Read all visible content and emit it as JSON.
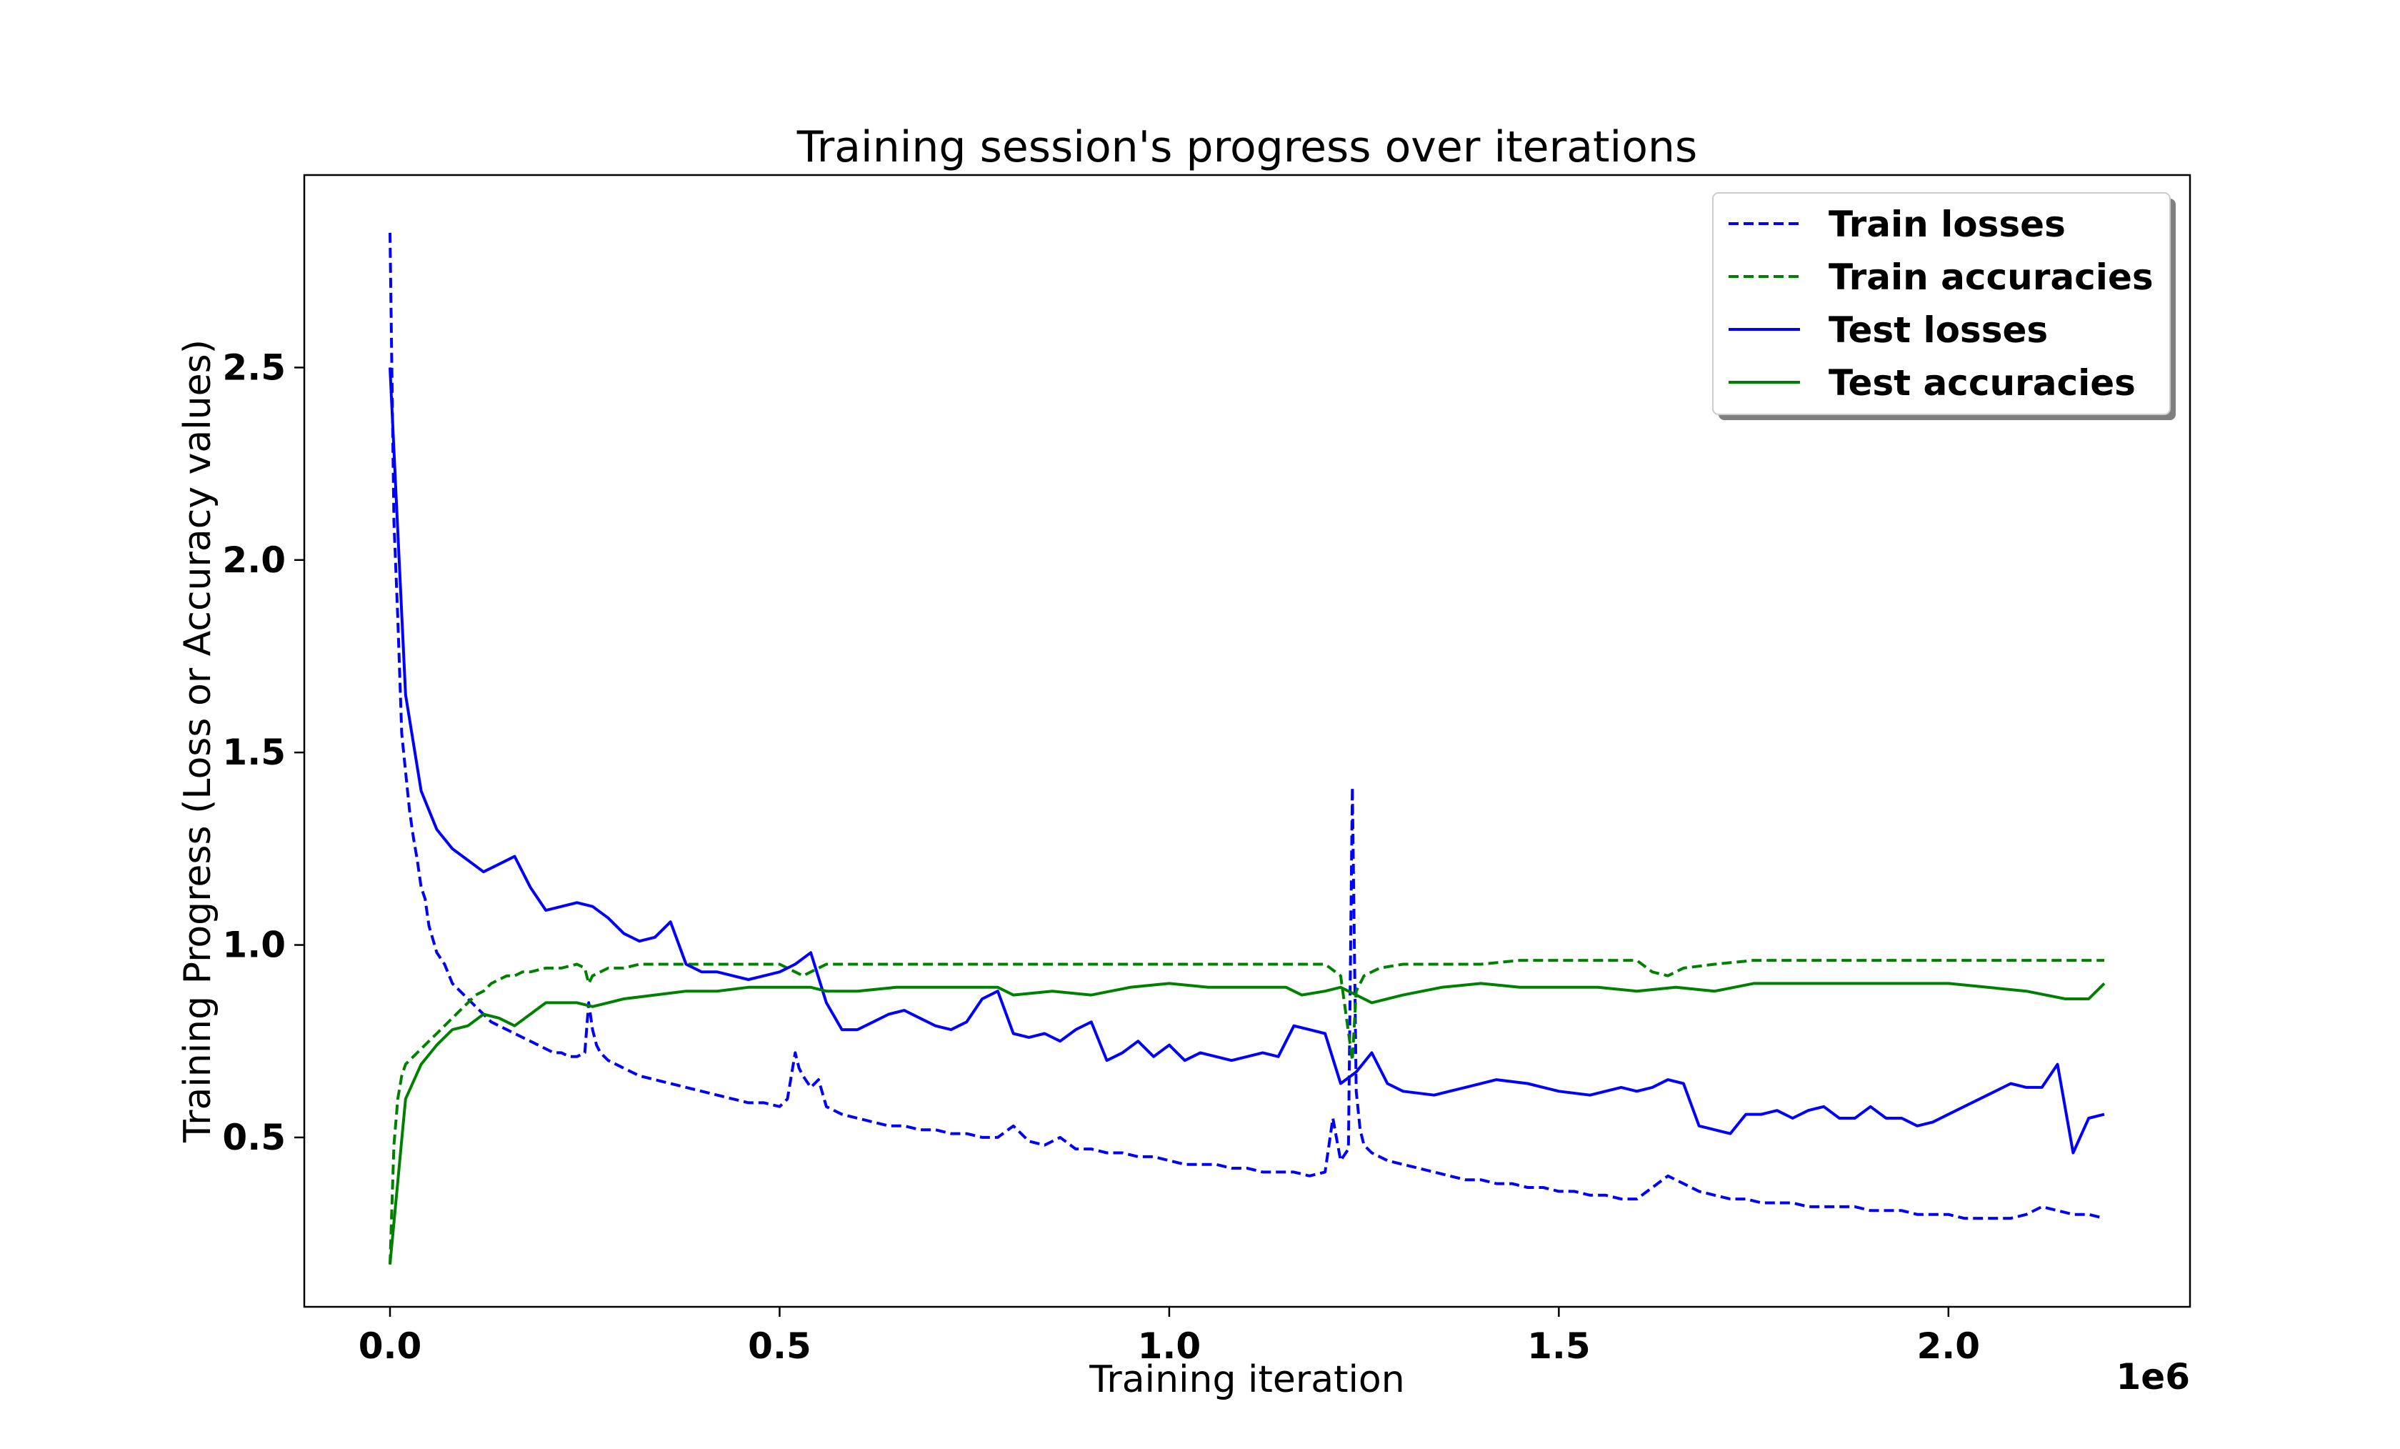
{
  "chart_data": {
    "type": "line",
    "title": "Training session's progress over iterations",
    "xlabel": "Training iteration",
    "ylabel": "Training Progress (Loss or Accuracy values)",
    "x_offset_label": "1e6",
    "x_scale": 1000000,
    "xlim": [
      -110000,
      2310000
    ],
    "ylim": [
      0.06,
      3.0
    ],
    "x_ticks": [
      0,
      500000,
      1000000,
      1500000,
      2000000
    ],
    "x_tick_labels": [
      "0.0",
      "0.5",
      "1.0",
      "1.5",
      "2.0"
    ],
    "y_ticks": [
      0.5,
      1.0,
      1.5,
      2.0,
      2.5
    ],
    "y_tick_labels": [
      "0.5",
      "1.0",
      "1.5",
      "2.0",
      "2.5"
    ],
    "grid": false,
    "legend_position": "top-right",
    "colors": {
      "blue": "#0000ff",
      "green": "#008000"
    },
    "series": [
      {
        "name": "Train losses",
        "color": "#0000ff",
        "style": "dashed",
        "x": [
          0,
          5000,
          10000,
          15000,
          20000,
          25000,
          30000,
          35000,
          40000,
          45000,
          50000,
          60000,
          70000,
          80000,
          90000,
          100000,
          110000,
          120000,
          130000,
          140000,
          150000,
          160000,
          170000,
          180000,
          190000,
          200000,
          210000,
          220000,
          230000,
          240000,
          250000,
          255000,
          260000,
          265000,
          270000,
          280000,
          290000,
          300000,
          320000,
          340000,
          360000,
          380000,
          400000,
          420000,
          440000,
          460000,
          480000,
          500000,
          510000,
          520000,
          525000,
          530000,
          540000,
          550000,
          560000,
          580000,
          600000,
          620000,
          640000,
          660000,
          680000,
          700000,
          720000,
          740000,
          760000,
          780000,
          800000,
          820000,
          840000,
          860000,
          880000,
          900000,
          920000,
          940000,
          960000,
          980000,
          1000000,
          1020000,
          1040000,
          1060000,
          1080000,
          1100000,
          1120000,
          1140000,
          1160000,
          1180000,
          1200000,
          1210000,
          1220000,
          1230000,
          1235000,
          1240000,
          1245000,
          1250000,
          1260000,
          1280000,
          1300000,
          1320000,
          1340000,
          1360000,
          1380000,
          1400000,
          1420000,
          1440000,
          1460000,
          1480000,
          1500000,
          1520000,
          1540000,
          1560000,
          1580000,
          1600000,
          1620000,
          1640000,
          1660000,
          1680000,
          1700000,
          1720000,
          1740000,
          1760000,
          1780000,
          1800000,
          1820000,
          1840000,
          1860000,
          1880000,
          1900000,
          1920000,
          1940000,
          1960000,
          1980000,
          2000000,
          2020000,
          2040000,
          2060000,
          2080000,
          2100000,
          2120000,
          2140000,
          2160000,
          2180000,
          2200000
        ],
        "y": [
          2.85,
          2.1,
          1.85,
          1.55,
          1.45,
          1.35,
          1.28,
          1.22,
          1.15,
          1.12,
          1.05,
          0.98,
          0.95,
          0.9,
          0.88,
          0.86,
          0.84,
          0.82,
          0.8,
          0.79,
          0.78,
          0.77,
          0.76,
          0.75,
          0.74,
          0.73,
          0.72,
          0.72,
          0.71,
          0.71,
          0.72,
          0.85,
          0.78,
          0.74,
          0.72,
          0.7,
          0.69,
          0.68,
          0.66,
          0.65,
          0.64,
          0.63,
          0.62,
          0.61,
          0.6,
          0.59,
          0.59,
          0.58,
          0.6,
          0.72,
          0.68,
          0.66,
          0.63,
          0.65,
          0.58,
          0.56,
          0.55,
          0.54,
          0.53,
          0.53,
          0.52,
          0.52,
          0.51,
          0.51,
          0.5,
          0.5,
          0.53,
          0.49,
          0.48,
          0.5,
          0.47,
          0.47,
          0.46,
          0.46,
          0.45,
          0.45,
          0.44,
          0.43,
          0.43,
          0.43,
          0.42,
          0.42,
          0.41,
          0.41,
          0.41,
          0.4,
          0.41,
          0.55,
          0.44,
          0.47,
          1.41,
          0.62,
          0.52,
          0.48,
          0.46,
          0.44,
          0.43,
          0.42,
          0.41,
          0.4,
          0.39,
          0.39,
          0.38,
          0.38,
          0.37,
          0.37,
          0.36,
          0.36,
          0.35,
          0.35,
          0.34,
          0.34,
          0.37,
          0.4,
          0.38,
          0.36,
          0.35,
          0.34,
          0.34,
          0.33,
          0.33,
          0.33,
          0.32,
          0.32,
          0.32,
          0.32,
          0.31,
          0.31,
          0.31,
          0.3,
          0.3,
          0.3,
          0.29,
          0.29,
          0.29,
          0.29,
          0.3,
          0.32,
          0.31,
          0.3,
          0.3,
          0.29
        ]
      },
      {
        "name": "Train accuracies",
        "color": "#008000",
        "style": "dashed",
        "x": [
          0,
          5000,
          10000,
          15000,
          20000,
          30000,
          40000,
          50000,
          60000,
          70000,
          80000,
          90000,
          100000,
          110000,
          120000,
          130000,
          140000,
          150000,
          160000,
          170000,
          180000,
          200000,
          220000,
          240000,
          250000,
          255000,
          260000,
          270000,
          280000,
          300000,
          320000,
          340000,
          360000,
          380000,
          400000,
          440000,
          480000,
          500000,
          520000,
          530000,
          540000,
          560000,
          600000,
          650000,
          700000,
          750000,
          800000,
          850000,
          900000,
          950000,
          1000000,
          1050000,
          1100000,
          1150000,
          1200000,
          1220000,
          1235000,
          1240000,
          1250000,
          1270000,
          1300000,
          1350000,
          1400000,
          1450000,
          1500000,
          1550000,
          1600000,
          1620000,
          1640000,
          1660000,
          1700000,
          1750000,
          1800000,
          1850000,
          1900000,
          1950000,
          2000000,
          2050000,
          2100000,
          2150000,
          2200000
        ],
        "y": [
          0.17,
          0.48,
          0.6,
          0.66,
          0.69,
          0.71,
          0.73,
          0.75,
          0.77,
          0.79,
          0.81,
          0.83,
          0.85,
          0.87,
          0.88,
          0.9,
          0.91,
          0.92,
          0.92,
          0.93,
          0.93,
          0.94,
          0.94,
          0.95,
          0.94,
          0.9,
          0.92,
          0.93,
          0.94,
          0.94,
          0.95,
          0.95,
          0.95,
          0.95,
          0.95,
          0.95,
          0.95,
          0.95,
          0.93,
          0.92,
          0.93,
          0.95,
          0.95,
          0.95,
          0.95,
          0.95,
          0.95,
          0.95,
          0.95,
          0.95,
          0.95,
          0.95,
          0.95,
          0.95,
          0.95,
          0.92,
          0.7,
          0.88,
          0.92,
          0.94,
          0.95,
          0.95,
          0.95,
          0.96,
          0.96,
          0.96,
          0.96,
          0.93,
          0.92,
          0.94,
          0.95,
          0.96,
          0.96,
          0.96,
          0.96,
          0.96,
          0.96,
          0.96,
          0.96,
          0.96,
          0.96
        ]
      },
      {
        "name": "Test losses",
        "color": "#0000ff",
        "style": "solid",
        "x": [
          0,
          20000,
          40000,
          60000,
          80000,
          100000,
          120000,
          140000,
          160000,
          180000,
          200000,
          220000,
          240000,
          260000,
          280000,
          300000,
          320000,
          340000,
          360000,
          380000,
          400000,
          420000,
          440000,
          460000,
          480000,
          500000,
          520000,
          540000,
          560000,
          580000,
          600000,
          620000,
          640000,
          660000,
          680000,
          700000,
          720000,
          740000,
          760000,
          780000,
          800000,
          820000,
          840000,
          860000,
          880000,
          900000,
          920000,
          940000,
          960000,
          980000,
          1000000,
          1020000,
          1040000,
          1060000,
          1080000,
          1100000,
          1120000,
          1140000,
          1160000,
          1180000,
          1200000,
          1220000,
          1240000,
          1260000,
          1280000,
          1300000,
          1340000,
          1380000,
          1420000,
          1460000,
          1500000,
          1540000,
          1580000,
          1600000,
          1620000,
          1640000,
          1660000,
          1680000,
          1700000,
          1720000,
          1740000,
          1760000,
          1780000,
          1800000,
          1820000,
          1840000,
          1860000,
          1880000,
          1900000,
          1920000,
          1940000,
          1960000,
          1980000,
          2000000,
          2020000,
          2040000,
          2060000,
          2080000,
          2100000,
          2120000,
          2140000,
          2160000,
          2180000,
          2200000
        ],
        "y": [
          2.5,
          1.65,
          1.4,
          1.3,
          1.25,
          1.22,
          1.19,
          1.21,
          1.23,
          1.15,
          1.09,
          1.1,
          1.11,
          1.1,
          1.07,
          1.03,
          1.01,
          1.02,
          1.06,
          0.95,
          0.93,
          0.93,
          0.92,
          0.91,
          0.92,
          0.93,
          0.95,
          0.98,
          0.85,
          0.78,
          0.78,
          0.8,
          0.82,
          0.83,
          0.81,
          0.79,
          0.78,
          0.8,
          0.86,
          0.88,
          0.77,
          0.76,
          0.77,
          0.75,
          0.78,
          0.8,
          0.7,
          0.72,
          0.75,
          0.71,
          0.74,
          0.7,
          0.72,
          0.71,
          0.7,
          0.71,
          0.72,
          0.71,
          0.79,
          0.78,
          0.77,
          0.64,
          0.67,
          0.72,
          0.64,
          0.62,
          0.61,
          0.63,
          0.65,
          0.64,
          0.62,
          0.61,
          0.63,
          0.62,
          0.63,
          0.65,
          0.64,
          0.53,
          0.52,
          0.51,
          0.56,
          0.56,
          0.57,
          0.55,
          0.57,
          0.58,
          0.55,
          0.55,
          0.58,
          0.55,
          0.55,
          0.53,
          0.54,
          0.56,
          0.58,
          0.6,
          0.62,
          0.64,
          0.63,
          0.63,
          0.69,
          0.46,
          0.55,
          0.56
        ],
        "_note": ""
      },
      {
        "name": "Test accuracies",
        "color": "#008000",
        "style": "solid",
        "x": [
          0,
          20000,
          40000,
          60000,
          80000,
          100000,
          120000,
          140000,
          160000,
          180000,
          200000,
          220000,
          240000,
          260000,
          280000,
          300000,
          340000,
          380000,
          420000,
          460000,
          500000,
          540000,
          560000,
          600000,
          650000,
          700000,
          750000,
          780000,
          800000,
          850000,
          900000,
          950000,
          1000000,
          1050000,
          1100000,
          1150000,
          1170000,
          1200000,
          1220000,
          1240000,
          1260000,
          1300000,
          1350000,
          1400000,
          1450000,
          1500000,
          1550000,
          1600000,
          1650000,
          1700000,
          1750000,
          1800000,
          1850000,
          1900000,
          1950000,
          2000000,
          2050000,
          2100000,
          2150000,
          2180000,
          2200000
        ],
        "y": [
          0.17,
          0.6,
          0.69,
          0.74,
          0.78,
          0.79,
          0.82,
          0.81,
          0.79,
          0.82,
          0.85,
          0.85,
          0.85,
          0.84,
          0.85,
          0.86,
          0.87,
          0.88,
          0.88,
          0.89,
          0.89,
          0.89,
          0.88,
          0.88,
          0.89,
          0.89,
          0.89,
          0.89,
          0.87,
          0.88,
          0.87,
          0.89,
          0.9,
          0.89,
          0.89,
          0.89,
          0.87,
          0.88,
          0.89,
          0.87,
          0.85,
          0.87,
          0.89,
          0.9,
          0.89,
          0.89,
          0.89,
          0.88,
          0.89,
          0.88,
          0.9,
          0.9,
          0.9,
          0.9,
          0.9,
          0.9,
          0.89,
          0.88,
          0.86,
          0.86,
          0.9
        ]
      }
    ]
  }
}
